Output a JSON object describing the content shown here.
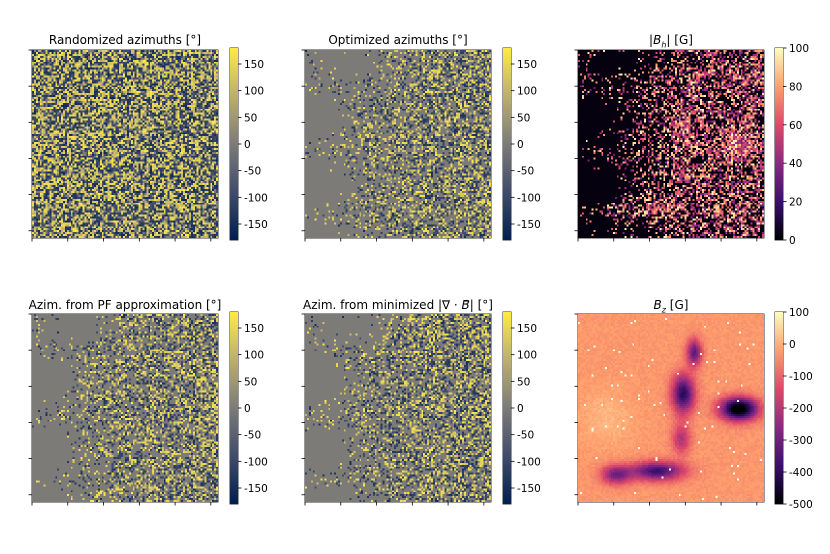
{
  "panels": [
    {
      "title": "Randomized azimuths [°]",
      "colormap": "cividis",
      "variant": "random",
      "colorbar": {
        "min": -180,
        "max": 180,
        "ticks": [
          150,
          100,
          50,
          0,
          -50,
          -100,
          -150
        ]
      }
    },
    {
      "title": "Optimized azimuths [°]",
      "colormap": "cividis",
      "variant": "masked",
      "colorbar": {
        "min": -180,
        "max": 180,
        "ticks": [
          150,
          100,
          50,
          0,
          -50,
          -100,
          -150
        ]
      }
    },
    {
      "title": "|B_h| [G]",
      "title_parts": [
        "|",
        "B",
        "h",
        "| [G]"
      ],
      "colormap": "magma",
      "variant": "bh",
      "colorbar": {
        "min": 0,
        "max": 100,
        "ticks": [
          100,
          80,
          60,
          40,
          20,
          0
        ]
      },
      "overlay": "green contours"
    },
    {
      "title": "Azim. from PF approximation [°]",
      "colormap": "cividis",
      "variant": "masked",
      "colorbar": {
        "min": -180,
        "max": 180,
        "ticks": [
          150,
          100,
          50,
          0,
          -50,
          -100,
          -150
        ]
      }
    },
    {
      "title": "Azim. from minimized |∇ · B⃗| [°]",
      "title_parts": [
        "Azim. from minimized |∇ · ",
        "B",
        "⃗",
        "| [°]"
      ],
      "colormap": "cividis",
      "variant": "masked",
      "colorbar": {
        "min": -180,
        "max": 180,
        "ticks": [
          150,
          100,
          50,
          0,
          -50,
          -100,
          -150
        ]
      }
    },
    {
      "title": "B_z [G]",
      "title_parts": [
        "",
        "B",
        "z",
        " [G]"
      ],
      "colormap": "magma",
      "variant": "bz",
      "colorbar": {
        "min": -500,
        "max": 100,
        "ticks": [
          100,
          0,
          -100,
          -200,
          -300,
          -400,
          -500
        ]
      }
    }
  ],
  "chart_data": [
    {
      "type": "heatmap",
      "title": "Randomized azimuths [°]",
      "colorbar_range": [
        -180,
        180
      ],
      "colorbar_ticks": [
        150,
        100,
        50,
        0,
        -50,
        -100,
        -150
      ],
      "colormap": "cividis"
    },
    {
      "type": "heatmap",
      "title": "Optimized azimuths [°]",
      "colorbar_range": [
        -180,
        180
      ],
      "colorbar_ticks": [
        150,
        100,
        50,
        0,
        -50,
        -100,
        -150
      ],
      "colormap": "cividis"
    },
    {
      "type": "heatmap",
      "title": "|B_h| [G]",
      "colorbar_range": [
        0,
        100
      ],
      "colorbar_ticks": [
        100,
        80,
        60,
        40,
        20,
        0
      ],
      "colormap": "magma"
    },
    {
      "type": "heatmap",
      "title": "Azim. from PF approximation [°]",
      "colorbar_range": [
        -180,
        180
      ],
      "colorbar_ticks": [
        150,
        100,
        50,
        0,
        -50,
        -100,
        -150
      ],
      "colormap": "cividis"
    },
    {
      "type": "heatmap",
      "title": "Azim. from minimized |∇ · B⃗| [°]",
      "colorbar_range": [
        -180,
        180
      ],
      "colorbar_ticks": [
        150,
        100,
        50,
        0,
        -50,
        -100,
        -150
      ],
      "colormap": "cividis"
    },
    {
      "type": "heatmap",
      "title": "B_z [G]",
      "colorbar_range": [
        -500,
        100
      ],
      "colorbar_ticks": [
        100,
        0,
        -100,
        -200,
        -300,
        -400,
        -500
      ],
      "colormap": "magma"
    }
  ]
}
